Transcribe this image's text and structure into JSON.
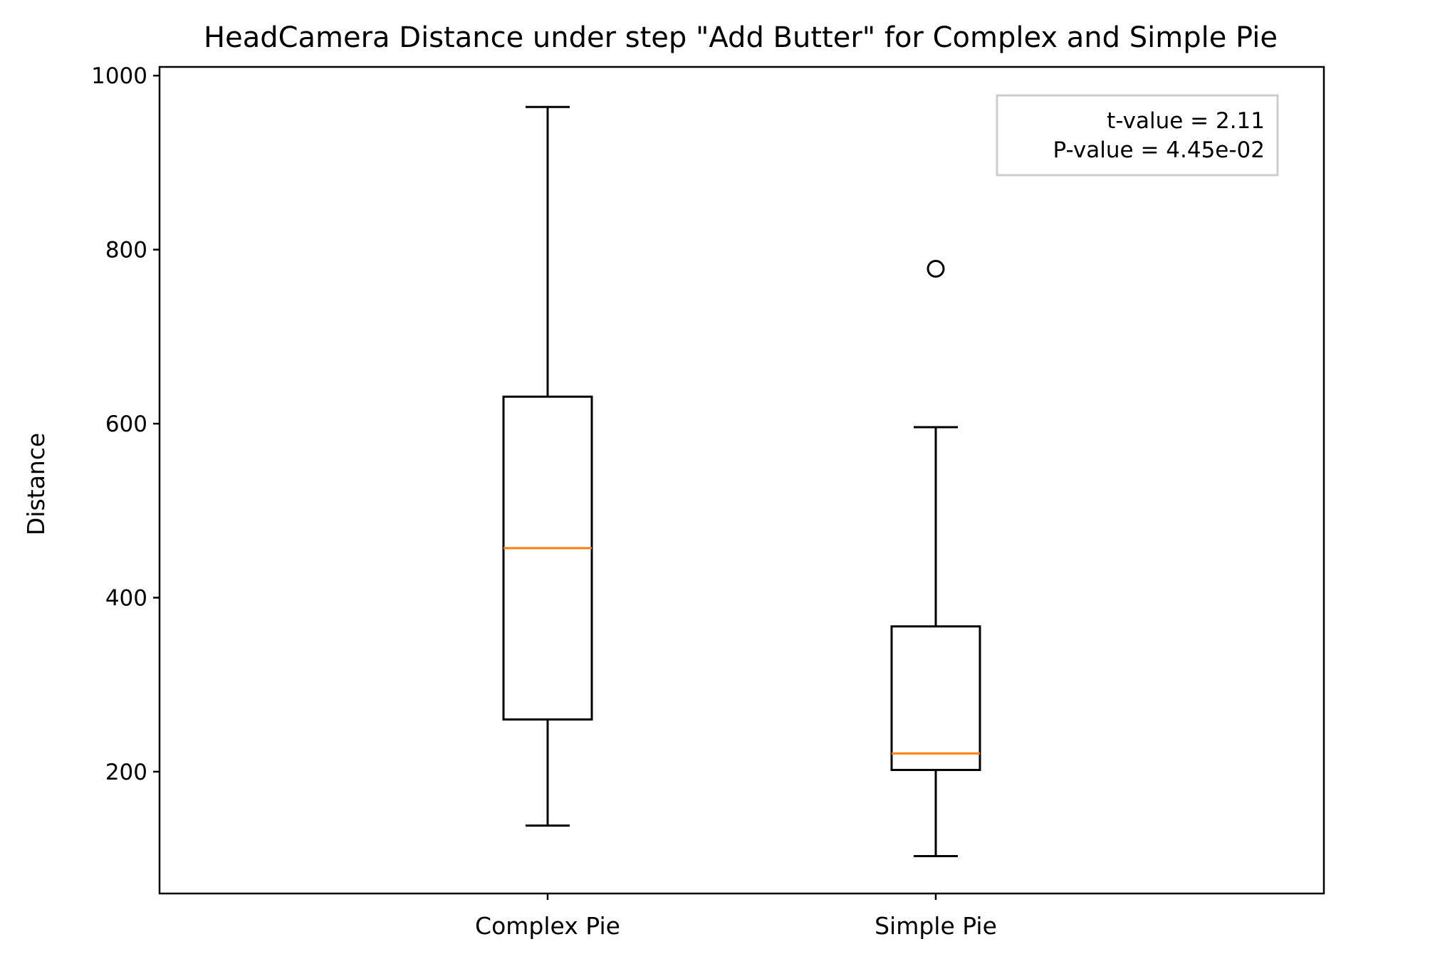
{
  "chart_data": {
    "type": "box",
    "title": "HeadCamera Distance under step \"Add Butter\" for Complex and Simple Pie",
    "xlabel": "",
    "ylabel": "Distance",
    "ylim": [
      60,
      1010
    ],
    "yticks": [
      200,
      400,
      600,
      800,
      1000
    ],
    "ytick_labels": [
      "200",
      "400",
      "600",
      "800",
      "1000"
    ],
    "categories": [
      "Complex Pie",
      "Simple Pie"
    ],
    "boxes": [
      {
        "category": "Complex Pie",
        "whisker_low": 138,
        "q1": 260,
        "median": 457,
        "q3": 631,
        "whisker_high": 964,
        "outliers": []
      },
      {
        "category": "Simple Pie",
        "whisker_low": 103,
        "q1": 202,
        "median": 221,
        "q3": 367,
        "whisker_high": 596,
        "outliers": [
          778
        ]
      }
    ],
    "annotation": {
      "lines": [
        "t-value = 2.11",
        "P-value = 4.45e-02"
      ],
      "placement": "top-right"
    },
    "grid": false,
    "colors": {
      "box": "#000000",
      "median": "#ff7f0e",
      "frame": "#000000",
      "annotation_border": "#cccccc"
    }
  }
}
